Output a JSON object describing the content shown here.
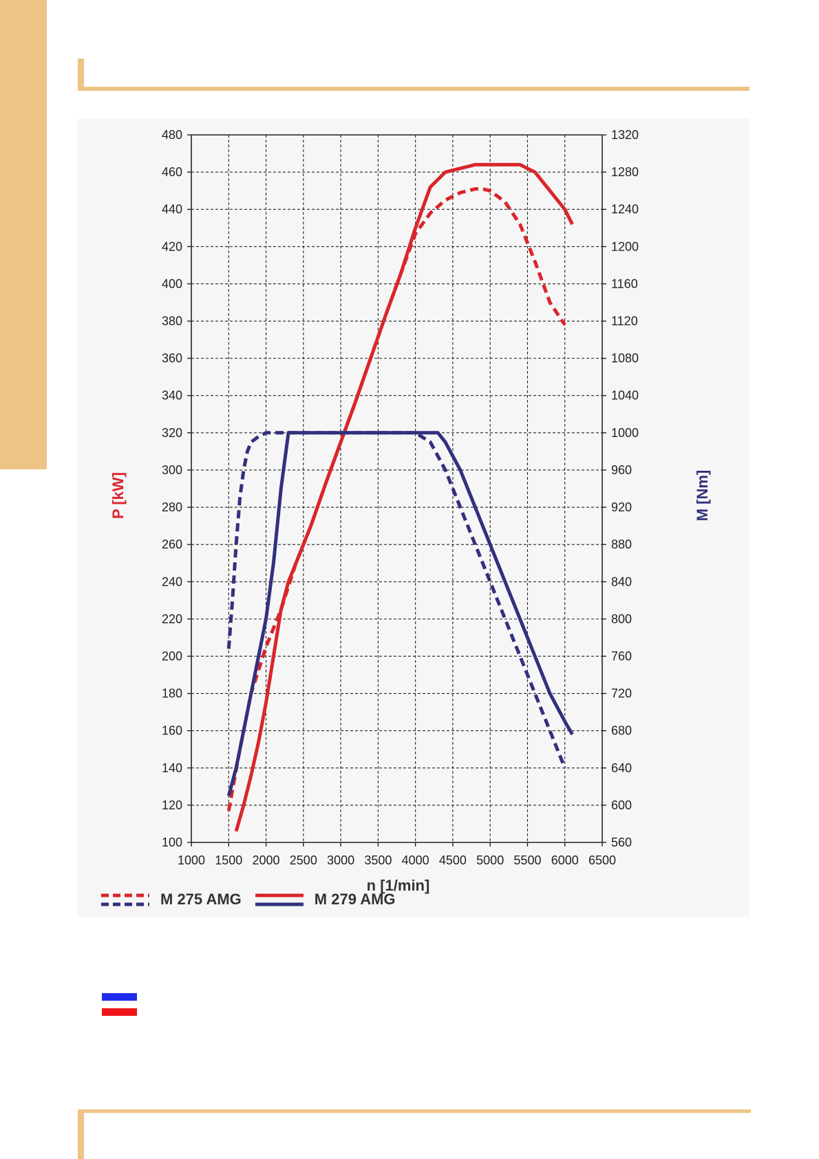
{
  "colors": {
    "accent": "#eec485",
    "power": "#d9262b",
    "torque": "#32307e",
    "grid": "#222222",
    "flag_blue": "#1f2cf0",
    "flag_red": "#f0141a"
  },
  "chart_data": {
    "type": "line",
    "title": "",
    "xlabel": "n [1/min]",
    "ylabel": "P [kW]",
    "ylabel_right": "M [Nm]",
    "xlim": [
      1000,
      6500
    ],
    "ylim": [
      100,
      480
    ],
    "ylim_right": [
      560,
      1320
    ],
    "x_ticks": [
      1000,
      1500,
      2000,
      2500,
      3000,
      3500,
      4000,
      4500,
      5000,
      5500,
      6000,
      6500
    ],
    "y_ticks": [
      100,
      120,
      140,
      160,
      180,
      200,
      220,
      240,
      260,
      280,
      300,
      320,
      340,
      360,
      380,
      400,
      420,
      440,
      460,
      480
    ],
    "y_ticks_right": [
      560,
      600,
      640,
      680,
      720,
      760,
      800,
      840,
      880,
      920,
      960,
      1000,
      1040,
      1080,
      1120,
      1160,
      1200,
      1240,
      1280,
      1320
    ],
    "grid": true,
    "legend": [
      {
        "label": "M 275 AMG",
        "style": "dashed"
      },
      {
        "label": "M 279 AMG",
        "style": "solid"
      }
    ],
    "series": [
      {
        "engine": "M 275 AMG",
        "quantity": "power",
        "axis": "left",
        "style": "dashed",
        "x": [
          1500,
          1650,
          1800,
          2000,
          2200,
          2400,
          2600,
          2800,
          3000,
          3200,
          3400,
          3600,
          3800,
          4000,
          4200,
          4400,
          4600,
          4800,
          4900,
          5000,
          5200,
          5400,
          5600,
          5800,
          6000
        ],
        "y": [
          117,
          150,
          180,
          205,
          225,
          250,
          270,
          293,
          315,
          337,
          360,
          383,
          405,
          427,
          438,
          445,
          449,
          451,
          451,
          450,
          444,
          432,
          412,
          390,
          378
        ]
      },
      {
        "engine": "M 279 AMG",
        "quantity": "power",
        "axis": "left",
        "style": "solid",
        "x": [
          1600,
          1700,
          1800,
          1900,
          2000,
          2100,
          2200,
          2300,
          2400,
          2600,
          2800,
          3000,
          3200,
          3400,
          3600,
          3800,
          4000,
          4200,
          4400,
          4600,
          4800,
          5000,
          5200,
          5400,
          5600,
          5800,
          6000,
          6100
        ],
        "y": [
          106,
          120,
          136,
          154,
          175,
          200,
          225,
          240,
          250,
          270,
          293,
          315,
          337,
          360,
          383,
          405,
          430,
          452,
          460,
          462,
          464,
          464,
          464,
          464,
          460,
          450,
          440,
          432
        ]
      },
      {
        "engine": "M 275 AMG",
        "quantity": "torque",
        "axis": "right",
        "style": "dashed",
        "x": [
          1500,
          1550,
          1600,
          1650,
          1700,
          1750,
          1800,
          1900,
          2000,
          2100,
          2200,
          2500,
          3000,
          3500,
          4000,
          4200,
          4400,
          4600,
          4800,
          5000,
          5200,
          5400,
          5600,
          5800,
          6000
        ],
        "y": [
          768,
          820,
          880,
          930,
          960,
          980,
          990,
          996,
          1000,
          1000,
          1000,
          1000,
          1000,
          1000,
          1000,
          990,
          960,
          920,
          880,
          840,
          800,
          760,
          720,
          680,
          640
        ]
      },
      {
        "engine": "M 279 AMG",
        "quantity": "torque",
        "axis": "right",
        "style": "solid",
        "x": [
          1500,
          1600,
          1700,
          1800,
          1900,
          2000,
          2100,
          2200,
          2300,
          2500,
          3000,
          3500,
          4000,
          4300,
          4400,
          4600,
          4800,
          5000,
          5200,
          5400,
          5600,
          5800,
          6000,
          6100
        ],
        "y": [
          610,
          640,
          680,
          720,
          760,
          800,
          860,
          940,
          1000,
          1000,
          1000,
          1000,
          1000,
          1000,
          990,
          960,
          920,
          880,
          840,
          800,
          760,
          720,
          690,
          676
        ]
      }
    ]
  }
}
